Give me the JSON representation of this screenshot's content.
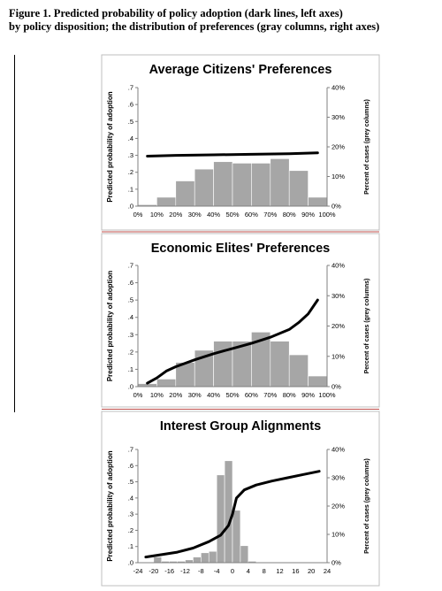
{
  "caption": {
    "line1": "Figure 1. Predicted probability of policy adoption (dark lines, left axes)",
    "line2": "by policy disposition; the distribution of preferences (gray columns, right axes)"
  },
  "colors": {
    "line": "#000000",
    "bars": "#a6a6a6",
    "panel_border": "#bfbfbf",
    "axis": "#808080",
    "divider": "#c0504d"
  },
  "chart_data": [
    {
      "type": "bar",
      "title": "Average Citizens' Preferences",
      "ylabel": "Predicted probability of adoption",
      "y2label": "Percent of cases (grey columns)",
      "ylim": [
        0,
        0.7
      ],
      "y2lim": [
        0,
        40
      ],
      "yticks": [
        ".0",
        ".1",
        ".2",
        ".3",
        ".4",
        ".5",
        ".6",
        ".7"
      ],
      "y2ticks": [
        "0%",
        "10%",
        "20%",
        "30%",
        "40%"
      ],
      "xticks": [
        "0%",
        "10%",
        "20%",
        "30%",
        "40%",
        "50%",
        "60%",
        "70%",
        "80%",
        "90%",
        "100%"
      ],
      "xlim": [
        0,
        100
      ],
      "bar_edges": [
        0,
        10,
        20,
        30,
        40,
        50,
        60,
        70,
        80,
        90,
        100
      ],
      "bars_percent": [
        0.5,
        3,
        8.5,
        12.5,
        15,
        14.5,
        14.5,
        16,
        12,
        3
      ],
      "line": {
        "x": [
          5,
          20,
          40,
          60,
          80,
          95
        ],
        "y": [
          0.295,
          0.3,
          0.303,
          0.306,
          0.31,
          0.315
        ]
      }
    },
    {
      "type": "bar",
      "title": "Economic Elites' Preferences",
      "ylabel": "Predicted probability of adoption",
      "y2label": "Percent of cases (grey columns)",
      "ylim": [
        0,
        0.7
      ],
      "y2lim": [
        0,
        40
      ],
      "yticks": [
        ".0",
        ".1",
        ".2",
        ".3",
        ".4",
        ".5",
        ".6",
        ".7"
      ],
      "y2ticks": [
        "0%",
        "10%",
        "20%",
        "30%",
        "40%"
      ],
      "xticks": [
        "0%",
        "10%",
        "20%",
        "30%",
        "40%",
        "50%",
        "60%",
        "70%",
        "80%",
        "90%",
        "100%"
      ],
      "xlim": [
        0,
        100
      ],
      "bar_edges": [
        0,
        10,
        20,
        30,
        40,
        50,
        60,
        70,
        80,
        90,
        100
      ],
      "bars_percent": [
        1,
        2.5,
        8,
        12,
        15,
        15,
        18,
        15,
        10.5,
        3.5
      ],
      "line": {
        "x": [
          5,
          10,
          15,
          20,
          30,
          40,
          50,
          60,
          70,
          80,
          85,
          90,
          95
        ],
        "y": [
          0.02,
          0.05,
          0.09,
          0.115,
          0.155,
          0.19,
          0.22,
          0.25,
          0.285,
          0.33,
          0.37,
          0.42,
          0.5
        ]
      }
    },
    {
      "type": "bar",
      "title": "Interest Group Alignments",
      "ylabel": "Predicted probability of adoption",
      "y2label": "Percent of cases (grey columns)",
      "ylim": [
        0,
        0.7
      ],
      "y2lim": [
        0,
        40
      ],
      "yticks": [
        ".0",
        ".1",
        ".2",
        ".3",
        ".4",
        ".5",
        ".6",
        ".7"
      ],
      "y2ticks": [
        "0%",
        "10%",
        "20%",
        "30%",
        "40%"
      ],
      "xticks": [
        "-24",
        "-20",
        "-16",
        "-12",
        "-8",
        "-4",
        "0",
        "4",
        "8",
        "12",
        "16",
        "20",
        "24"
      ],
      "xlim": [
        -24,
        24
      ],
      "bar_edges": [
        -20,
        -18,
        -16,
        -14,
        -12,
        -10,
        -8,
        -6,
        -4,
        -2,
        0,
        2,
        4,
        6
      ],
      "bars_percent": [
        2,
        0.5,
        0.5,
        0.5,
        1,
        2,
        3.5,
        4,
        31,
        36,
        18.5,
        6,
        0.5
      ],
      "line": {
        "x": [
          -22,
          -18,
          -14,
          -10,
          -6,
          -3,
          -1,
          0,
          1,
          3,
          6,
          10,
          14,
          18,
          22
        ],
        "y": [
          0.035,
          0.05,
          0.065,
          0.09,
          0.13,
          0.17,
          0.23,
          0.3,
          0.4,
          0.45,
          0.48,
          0.505,
          0.525,
          0.545,
          0.565
        ]
      }
    }
  ]
}
